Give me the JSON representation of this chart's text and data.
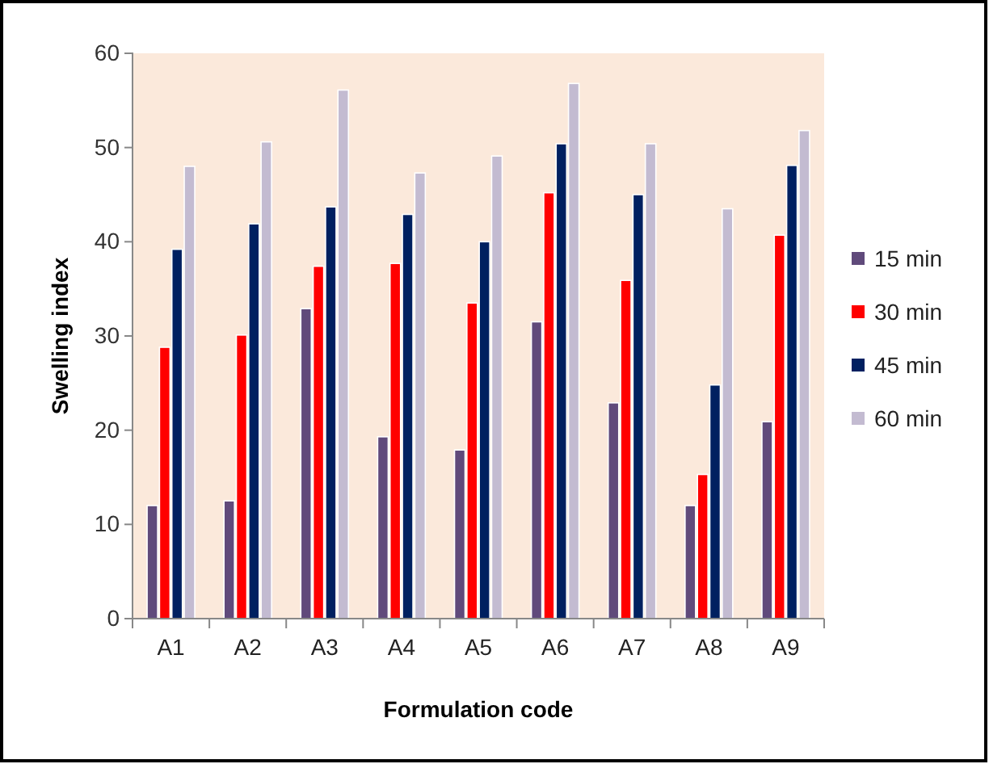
{
  "chart_data": {
    "type": "bar",
    "xlabel": "Formulation code",
    "ylabel": "Swelling index",
    "categories": [
      "A1",
      "A2",
      "A3",
      "A4",
      "A5",
      "A6",
      "A7",
      "A8",
      "A9"
    ],
    "series": [
      {
        "name": "15 min",
        "color": "#604a7b",
        "values": [
          12,
          12.5,
          32.9,
          19.3,
          17.9,
          31.5,
          22.9,
          12,
          20.9
        ]
      },
      {
        "name": "30 min",
        "color": "#ff0000",
        "values": [
          28.8,
          30.1,
          37.4,
          37.7,
          33.5,
          45.2,
          35.9,
          15.3,
          40.7
        ]
      },
      {
        "name": "45 min",
        "color": "#002060",
        "values": [
          39.2,
          41.9,
          43.7,
          42.9,
          40,
          50.4,
          45,
          24.8,
          48.1
        ]
      },
      {
        "name": "60 min",
        "color": "#c3bbd1",
        "values": [
          48,
          50.6,
          56.1,
          47.3,
          49.1,
          56.8,
          50.4,
          43.5,
          51.8
        ]
      }
    ],
    "ylim": [
      0,
      60
    ],
    "yticks": [
      0,
      10,
      20,
      30,
      40,
      50,
      60
    ],
    "grid": false,
    "legend": "right"
  }
}
